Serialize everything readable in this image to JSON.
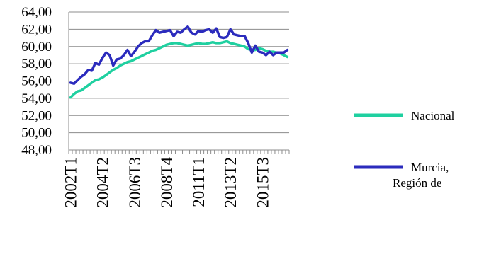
{
  "chart_data": {
    "type": "line",
    "title": "",
    "xlabel": "",
    "ylabel": "",
    "ylim": [
      48,
      64
    ],
    "y_ticks": [
      "48,00",
      "50,00",
      "52,00",
      "54,00",
      "56,00",
      "58,00",
      "60,00",
      "62,00",
      "64,00"
    ],
    "grid": "horizontal",
    "legend_position": "right",
    "x_period_start": "2002T1",
    "x_period_count": 62,
    "x_tick_labels": [
      "2002T1",
      "2004T2",
      "2006T3",
      "2008T4",
      "2011T1",
      "2013T2",
      "2015T3"
    ],
    "series": [
      {
        "name": "Nacional",
        "color": "#1fd0a0",
        "values": [
          54.1,
          54.5,
          54.8,
          54.9,
          55.2,
          55.5,
          55.8,
          56.1,
          56.2,
          56.4,
          56.7,
          57.0,
          57.3,
          57.5,
          57.8,
          58.0,
          58.2,
          58.3,
          58.5,
          58.7,
          58.9,
          59.1,
          59.3,
          59.5,
          59.6,
          59.8,
          60.0,
          60.2,
          60.3,
          60.4,
          60.4,
          60.3,
          60.2,
          60.1,
          60.2,
          60.3,
          60.4,
          60.3,
          60.3,
          60.4,
          60.5,
          60.4,
          60.4,
          60.5,
          60.6,
          60.4,
          60.3,
          60.2,
          60.1,
          60.0,
          59.7,
          59.6,
          59.6,
          59.8,
          59.7,
          59.5,
          59.4,
          59.4,
          59.3,
          59.2,
          59.0,
          58.8
        ]
      },
      {
        "name": "Murcia, Región de",
        "color": "#2b2bbd",
        "values": [
          55.8,
          55.7,
          56.1,
          56.5,
          56.8,
          57.3,
          57.2,
          58.1,
          57.9,
          58.7,
          59.3,
          59.0,
          57.8,
          58.5,
          58.6,
          59.0,
          59.6,
          58.9,
          59.4,
          60.0,
          60.4,
          60.6,
          60.6,
          61.3,
          61.9,
          61.6,
          61.7,
          61.8,
          61.9,
          61.2,
          61.7,
          61.6,
          62.0,
          62.3,
          61.6,
          61.4,
          61.8,
          61.7,
          61.9,
          62.0,
          61.6,
          62.1,
          61.1,
          61.0,
          61.1,
          62.0,
          61.4,
          61.3,
          61.2,
          61.2,
          60.4,
          59.3,
          60.1,
          59.4,
          59.3,
          59.0,
          59.4,
          59.0,
          59.3,
          59.3,
          59.3,
          59.6
        ]
      }
    ]
  }
}
